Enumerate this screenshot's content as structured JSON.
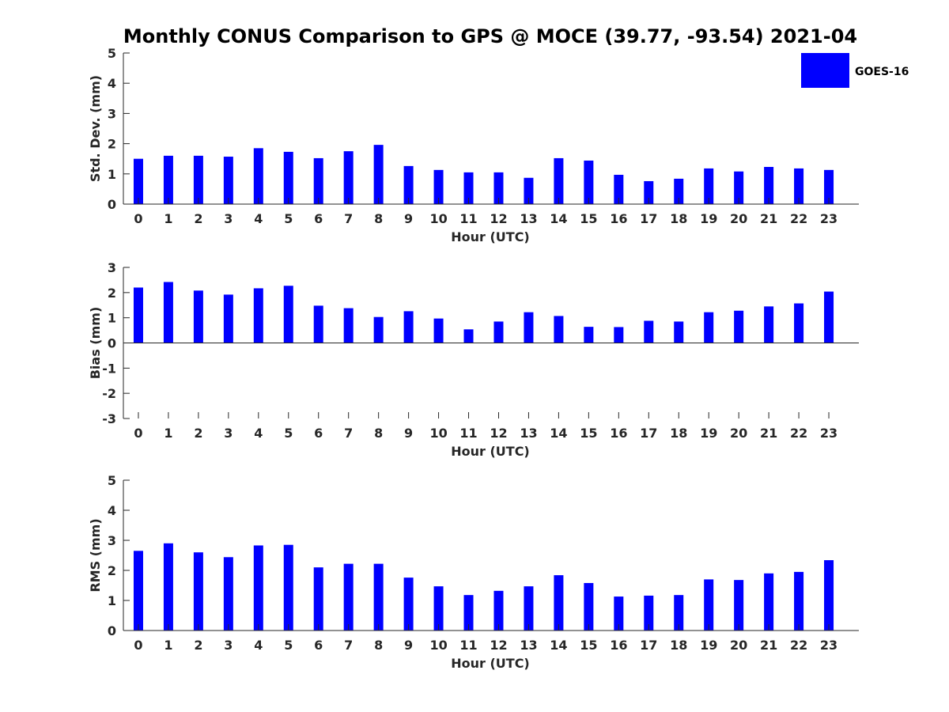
{
  "chart_data": {
    "type": "bar",
    "title": "Monthly CONUS Comparison to GPS @ MOCE (39.77, -93.54) 2021-04",
    "legend": {
      "label": "GOES-16",
      "placement": "top-right"
    },
    "bar_color": "#0000ff",
    "categories": [
      "0",
      "1",
      "2",
      "3",
      "4",
      "5",
      "6",
      "7",
      "8",
      "9",
      "10",
      "11",
      "12",
      "13",
      "14",
      "15",
      "16",
      "17",
      "18",
      "19",
      "20",
      "21",
      "22",
      "23"
    ],
    "panels": [
      {
        "id": "stddev",
        "ylabel": "Std. Dev. (mm)",
        "xlabel": "Hour (UTC)",
        "ylim": [
          0,
          5
        ],
        "yticks": [
          "0",
          "1",
          "2",
          "3",
          "4",
          "5"
        ],
        "series": [
          {
            "name": "GOES-16",
            "values": [
              1.5,
              1.6,
              1.6,
              1.57,
              1.85,
              1.73,
              1.52,
              1.75,
              1.96,
              1.26,
              1.13,
              1.05,
              1.05,
              0.87,
              1.52,
              1.44,
              0.97,
              0.76,
              0.84,
              1.18,
              1.08,
              1.23,
              1.18,
              1.13
            ]
          }
        ]
      },
      {
        "id": "bias",
        "ylabel": "Bias (mm)",
        "xlabel": "Hour (UTC)",
        "ylim": [
          -3,
          3
        ],
        "yticks": [
          "-3",
          "-2",
          "-1",
          "0",
          "1",
          "2",
          "3"
        ],
        "series": [
          {
            "name": "GOES-16",
            "values": [
              2.2,
              2.42,
              2.08,
              1.92,
              2.17,
              2.27,
              1.48,
              1.38,
              1.03,
              1.26,
              0.97,
              0.54,
              0.85,
              1.22,
              1.07,
              0.64,
              0.63,
              0.88,
              0.85,
              1.22,
              1.28,
              1.45,
              1.57,
              2.04
            ]
          }
        ]
      },
      {
        "id": "rms",
        "ylabel": "RMS (mm)",
        "xlabel": "Hour (UTC)",
        "ylim": [
          0,
          5
        ],
        "yticks": [
          "0",
          "1",
          "2",
          "3",
          "4",
          "5"
        ],
        "series": [
          {
            "name": "GOES-16",
            "values": [
              2.65,
              2.9,
              2.6,
              2.44,
              2.83,
              2.85,
              2.1,
              2.22,
              2.22,
              1.76,
              1.47,
              1.18,
              1.32,
              1.47,
              1.84,
              1.58,
              1.13,
              1.16,
              1.18,
              1.7,
              1.68,
              1.9,
              1.95,
              2.34
            ]
          }
        ]
      }
    ]
  }
}
